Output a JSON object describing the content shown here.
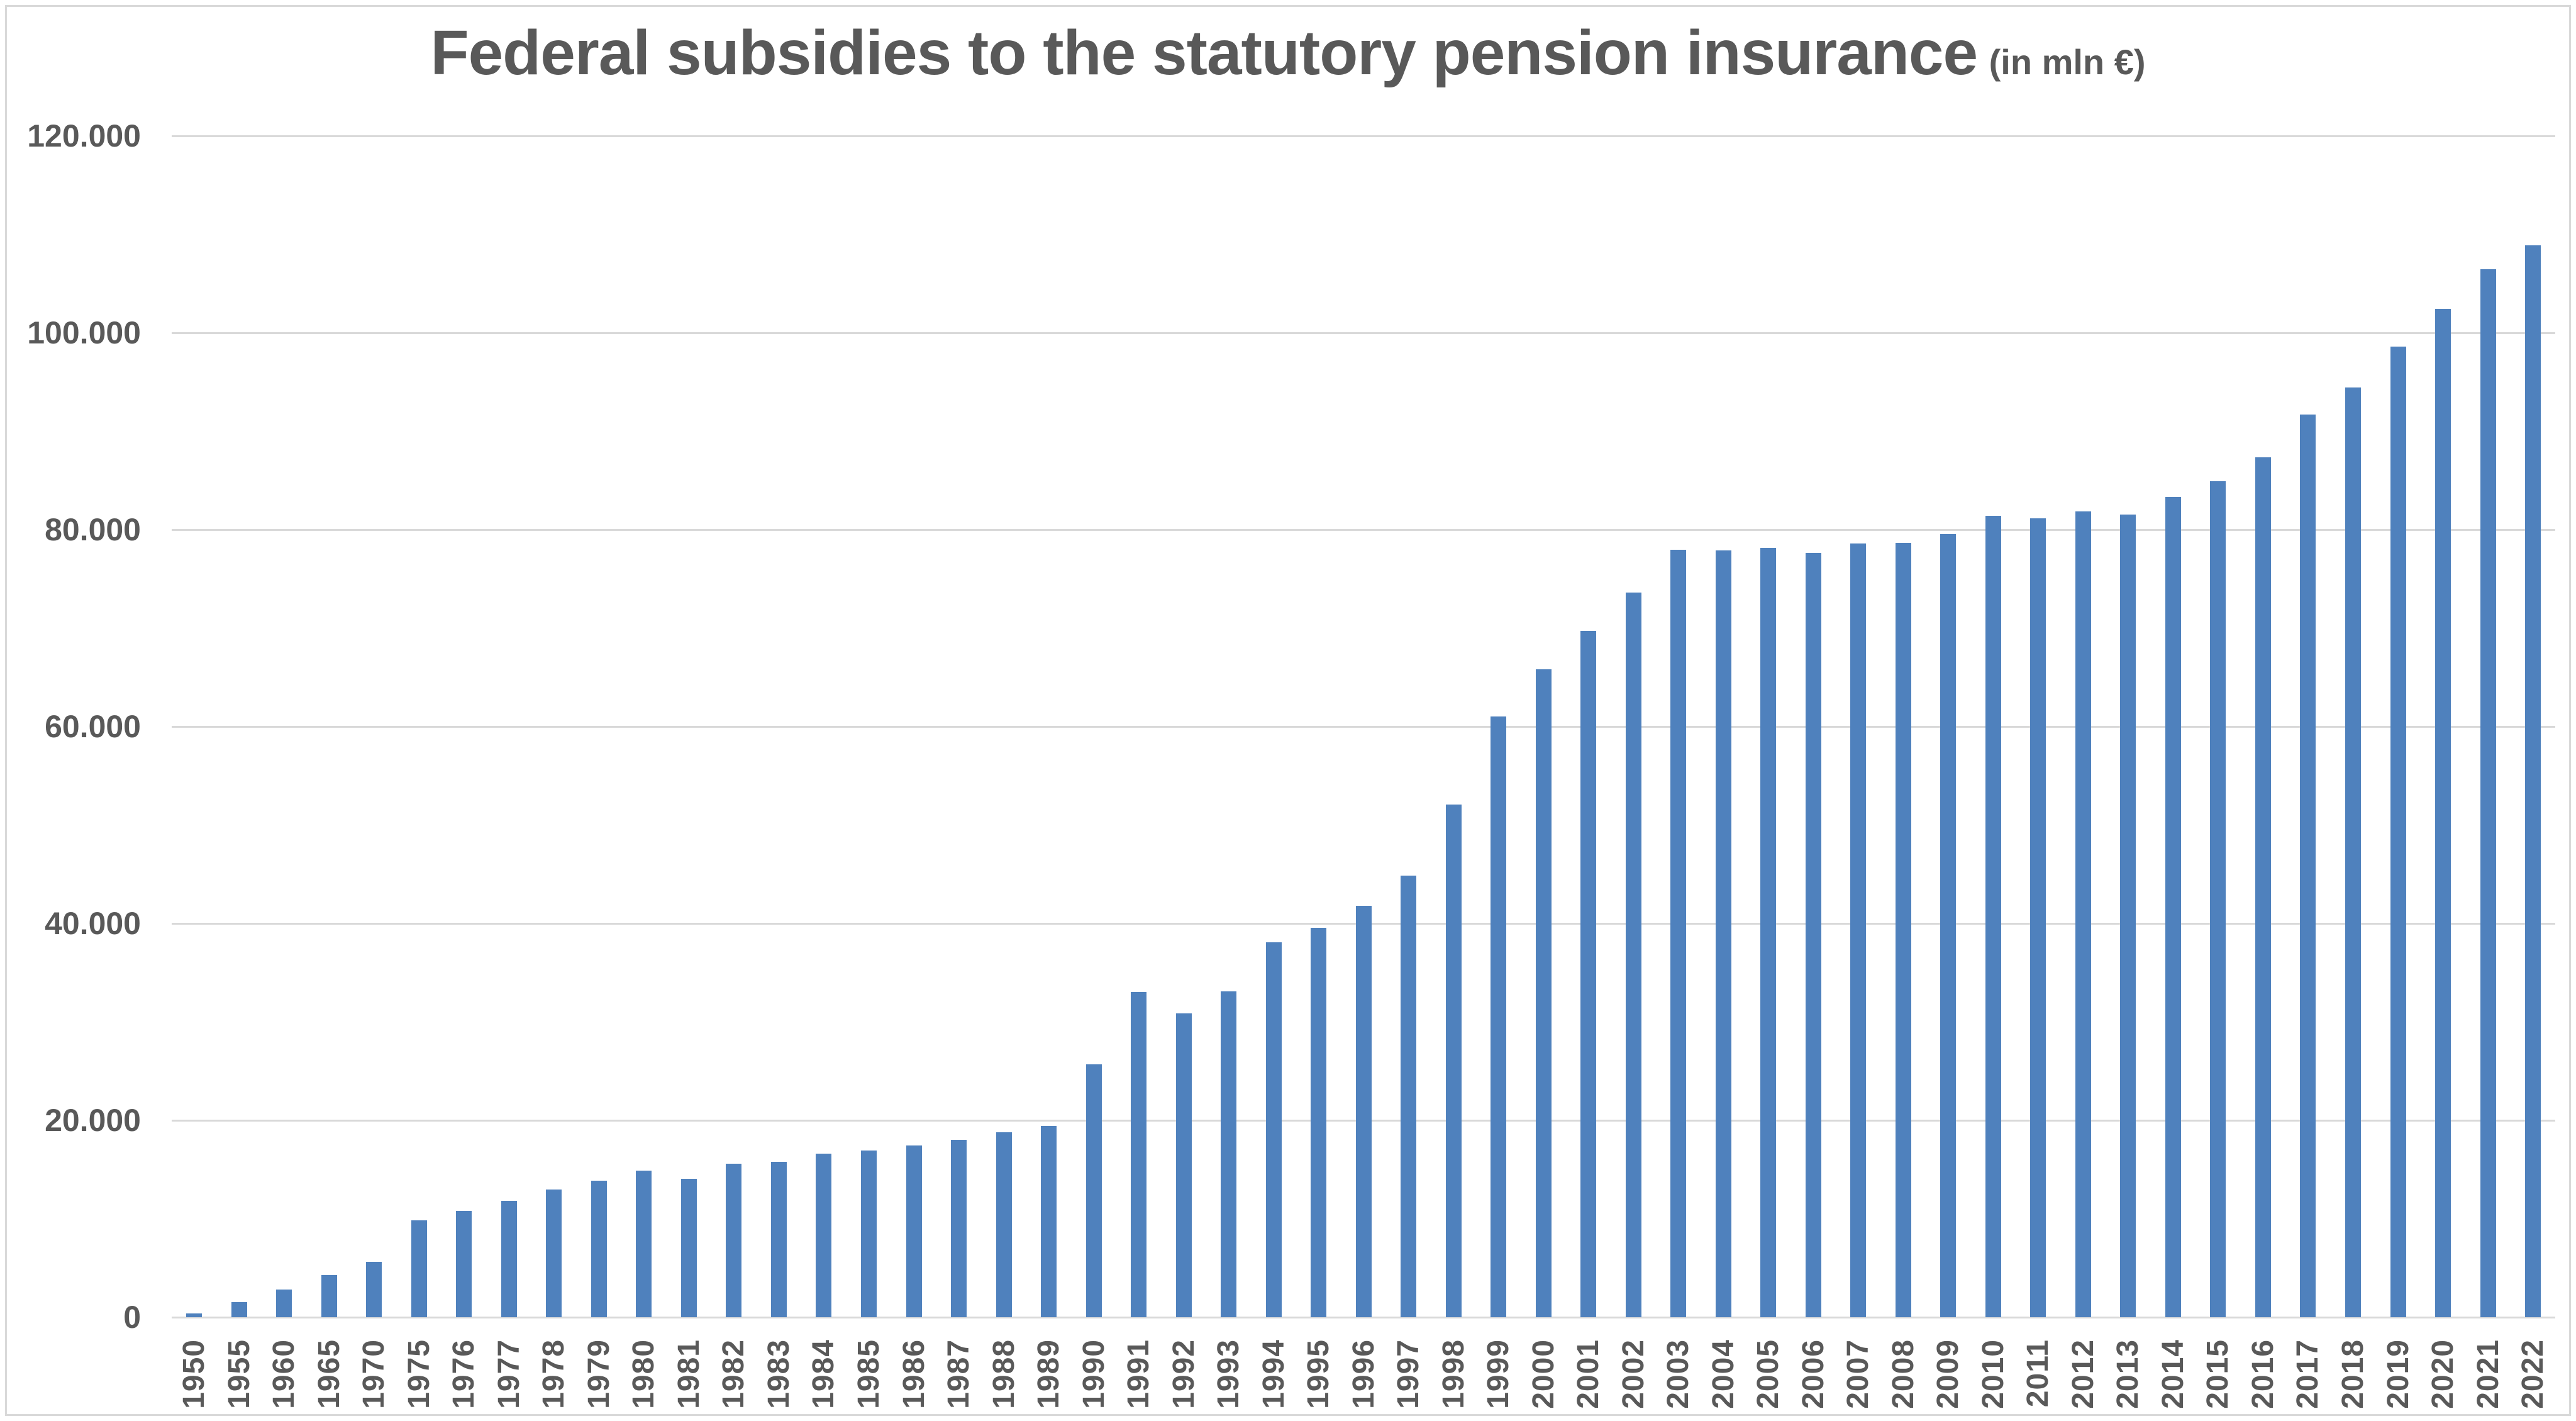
{
  "chart_data": {
    "type": "bar",
    "title": "Federal subsidies to the statutory pension insurance",
    "title_suffix": "(in mln €)",
    "xlabel": "",
    "ylabel": "",
    "ylim": [
      0,
      120000
    ],
    "grid": true,
    "legend": false,
    "ytick_labels": [
      "120.000",
      "100.000",
      "80.000",
      "60.000",
      "40.000",
      "20.000",
      "0"
    ],
    "categories": [
      "1950",
      "1955",
      "1960",
      "1965",
      "1970",
      "1975",
      "1976",
      "1977",
      "1978",
      "1979",
      "1980",
      "1981",
      "1982",
      "1983",
      "1984",
      "1985",
      "1986",
      "1987",
      "1988",
      "1989",
      "1990",
      "1991",
      "1992",
      "1993",
      "1994",
      "1995",
      "1996",
      "1997",
      "1998",
      "1999",
      "2000",
      "2001",
      "2002",
      "2003",
      "2004",
      "2005",
      "2006",
      "2007",
      "2008",
      "2009",
      "2010",
      "2011",
      "2012",
      "2013",
      "2014",
      "2015",
      "2016",
      "2017",
      "2018",
      "2019",
      "2020",
      "2021",
      "2022"
    ],
    "values": [
      409,
      1519,
      2806,
      4275,
      5610,
      9863,
      10815,
      11813,
      12970,
      13864,
      14899,
      14077,
      15563,
      15805,
      16612,
      16928,
      17441,
      18005,
      18798,
      19431,
      25658,
      33049,
      30832,
      33113,
      38107,
      39571,
      41818,
      44827,
      52049,
      61023,
      65816,
      69725,
      73605,
      77987,
      77873,
      78138,
      77663,
      78580,
      78629,
      79570,
      81402,
      81161,
      81852,
      81559,
      83297,
      84909,
      87349,
      91689,
      94416,
      98577,
      102432,
      106431,
      108858
    ],
    "bar_color": "#4f81bd",
    "gridline_color": "#d9d9d9",
    "frame_color": "#d9d9d9",
    "text_color": "#595959",
    "background_color": "#ffffff"
  }
}
